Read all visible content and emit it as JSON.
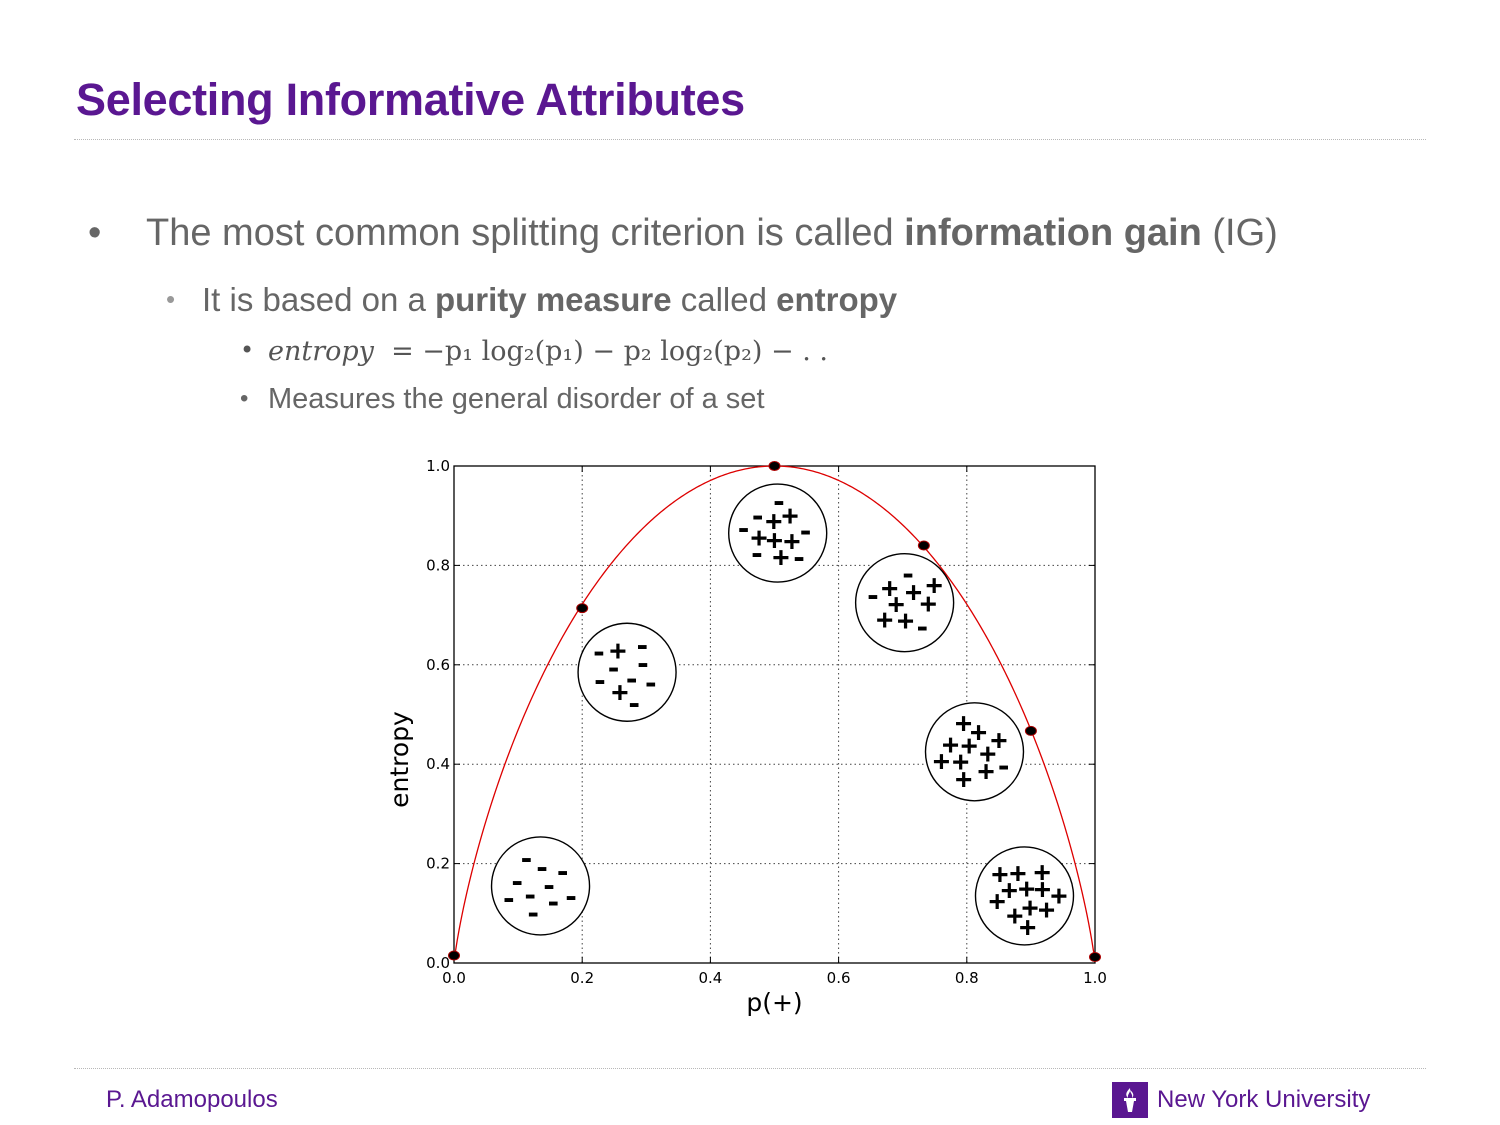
{
  "slide": {
    "title": "Selecting Informative Attributes",
    "bullet1": {
      "marker": "•",
      "pre": "The most common splitting criterion is called ",
      "bold": "information gain",
      "post": " (IG)"
    },
    "bullet2": {
      "marker": "•",
      "pre": "It is based on a ",
      "bold1": "purity measure",
      "mid": " called ",
      "bold2": "entropy"
    },
    "bullet3": {
      "marker": "•",
      "lhs": "entropy",
      "rhs": "= −p₁ log₂(p₁) − p₂ log₂(p₂) − . ."
    },
    "bullet4": {
      "marker": "•",
      "text": "Measures the general disorder of a set"
    }
  },
  "footer": {
    "author": "P. Adamopoulos",
    "university": "New York University"
  },
  "colors": {
    "title": "#5a1791",
    "body": "#666666",
    "curve": "#dd0000",
    "accent": "#5a1791"
  },
  "chart_data": {
    "type": "line",
    "xlabel": "p(+)",
    "ylabel": "entropy",
    "xlim": [
      0,
      1
    ],
    "ylim": [
      0,
      1
    ],
    "xticks": [
      "0.0",
      "0.2",
      "0.4",
      "0.6",
      "0.8",
      "1.0"
    ],
    "yticks": [
      "0.0",
      "0.2",
      "0.4",
      "0.6",
      "0.8",
      "1.0"
    ],
    "grid": true,
    "curve": "entropy(p) = -p log2(p) - (1-p) log2(1-p)",
    "points": [
      {
        "x": 0.0,
        "y": 0.015
      },
      {
        "x": 0.2,
        "y": 0.714
      },
      {
        "x": 0.5,
        "y": 1.0
      },
      {
        "x": 0.733,
        "y": 0.84
      },
      {
        "x": 0.9,
        "y": 0.467
      },
      {
        "x": 1.0,
        "y": 0.012
      }
    ],
    "sets": [
      {
        "cx": 0.135,
        "cy": 0.155,
        "plus": 0,
        "minus": 10
      },
      {
        "cx": 0.27,
        "cy": 0.585,
        "plus": 2,
        "minus": 8
      },
      {
        "cx": 0.505,
        "cy": 0.865,
        "plus": 6,
        "minus": 6
      },
      {
        "cx": 0.703,
        "cy": 0.725,
        "plus": 7,
        "minus": 3
      },
      {
        "cx": 0.812,
        "cy": 0.425,
        "plus": 10,
        "minus": 1
      },
      {
        "cx": 0.89,
        "cy": 0.135,
        "plus": 12,
        "minus": 0
      }
    ]
  }
}
